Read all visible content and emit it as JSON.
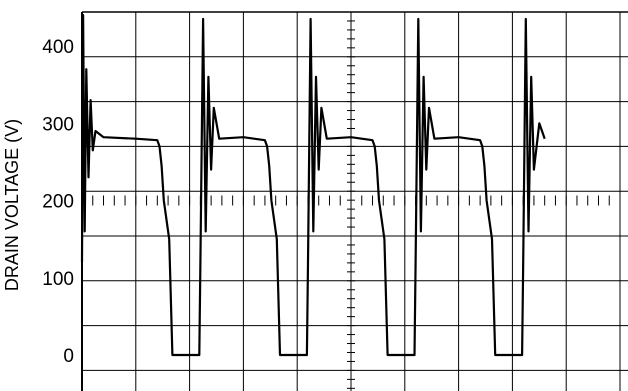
{
  "chart_data": {
    "type": "line",
    "title": "",
    "ylabel": "DRAIN VOLTAGE (V)",
    "xlabel": "",
    "ylim": [
      0,
      400
    ],
    "yticks": [
      0,
      100,
      200,
      300,
      400
    ],
    "grid": true,
    "grid_divisions_x": 10,
    "grid_divisions_y": 8,
    "colors": {
      "trace": "#000000",
      "grid": "#000000",
      "background": "#ffffff"
    },
    "series": [
      {
        "x": [
          0.0,
          0.02,
          0.05,
          0.08,
          0.12,
          0.16,
          0.2,
          0.25,
          0.4,
          1.0,
          1.4,
          1.44,
          1.48,
          1.52,
          1.57,
          1.62,
          1.68,
          1.7,
          1.72,
          1.74,
          1.8,
          1.9,
          2.18,
          2.2,
          2.25,
          2.3,
          2.35,
          2.4,
          2.45,
          2.55,
          3.0,
          3.4,
          3.44,
          3.48,
          3.52,
          3.57,
          3.62,
          3.68,
          3.7,
          3.72,
          3.74,
          3.8,
          3.9,
          4.18,
          4.2,
          4.25,
          4.3,
          4.35,
          4.4,
          4.45,
          4.55,
          5.0,
          5.4,
          5.44,
          5.48,
          5.52,
          5.57,
          5.62,
          5.68,
          5.7,
          5.72,
          5.74,
          5.8,
          5.9,
          6.18,
          6.2,
          6.25,
          6.3,
          6.35,
          6.4,
          6.45,
          6.55,
          7.0,
          7.4,
          7.44,
          7.48,
          7.52,
          7.57,
          7.62,
          7.68,
          7.7,
          7.72,
          7.74,
          7.8,
          7.9,
          8.18,
          8.2,
          8.25,
          8.3,
          8.35,
          8.4,
          8.5,
          8.6
        ],
        "y": [
          120,
          440,
          160,
          370,
          230,
          330,
          265,
          290,
          282,
          280,
          278,
          270,
          245,
          200,
          175,
          150,
          0,
          0,
          0,
          0,
          0,
          0,
          0,
          120,
          435,
          160,
          360,
          240,
          320,
          280,
          282,
          278,
          270,
          245,
          200,
          175,
          150,
          0,
          0,
          0,
          0,
          0,
          0,
          0,
          120,
          435,
          160,
          360,
          240,
          320,
          280,
          282,
          278,
          270,
          245,
          200,
          175,
          150,
          0,
          0,
          0,
          0,
          0,
          0,
          0,
          120,
          435,
          160,
          360,
          240,
          320,
          280,
          282,
          278,
          270,
          245,
          200,
          175,
          150,
          0,
          0,
          0,
          0,
          0,
          0,
          0,
          120,
          435,
          160,
          360,
          240,
          300,
          280
        ]
      }
    ]
  }
}
